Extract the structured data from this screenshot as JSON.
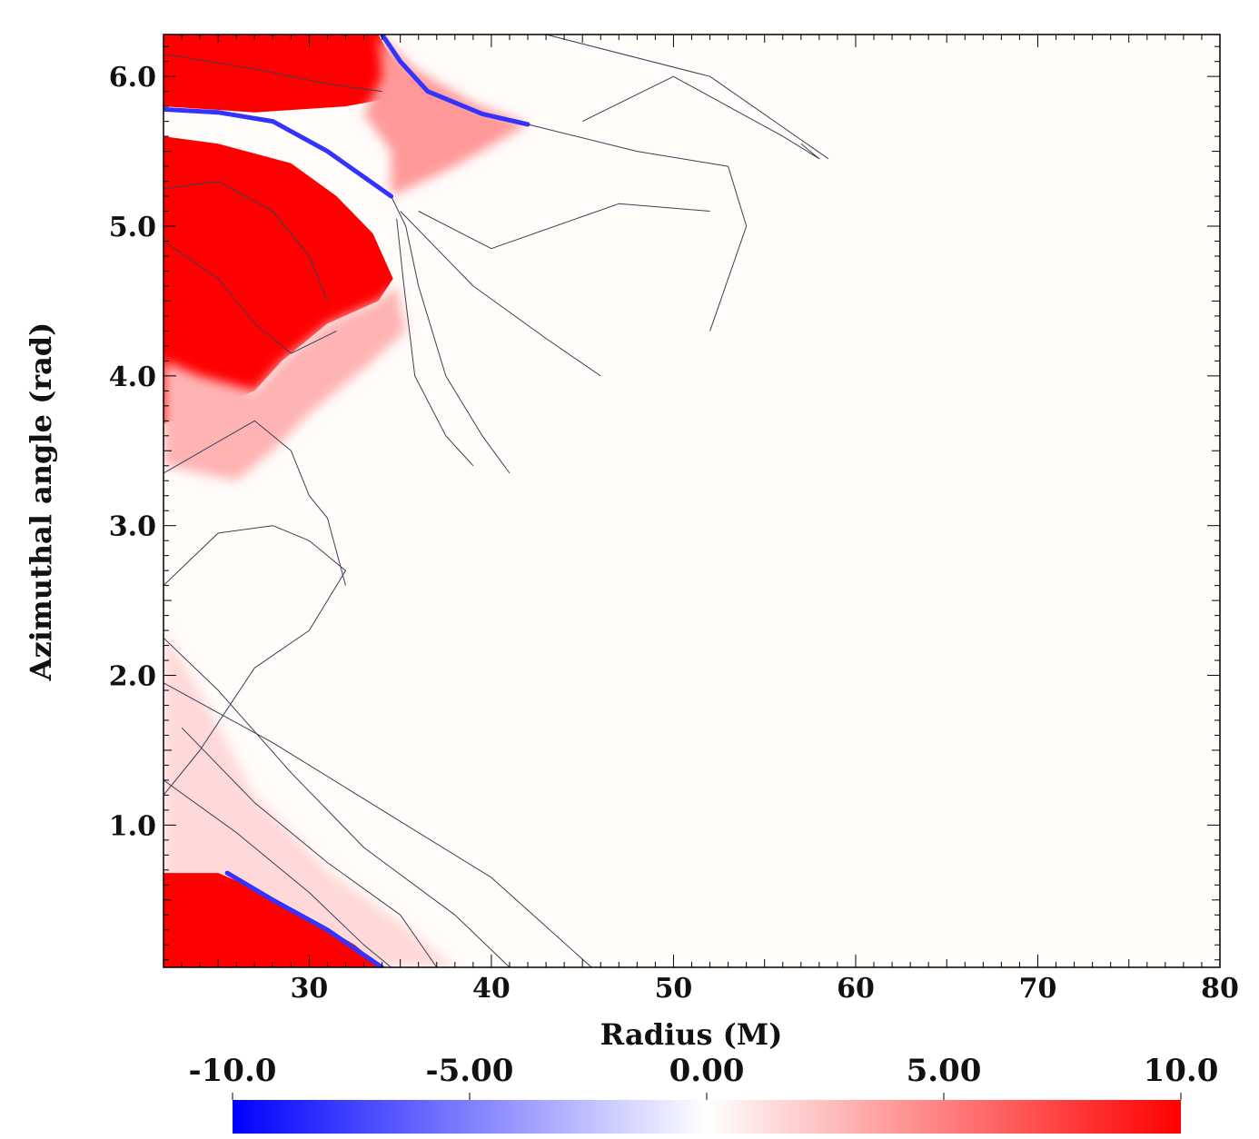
{
  "chart_data": {
    "type": "heatmap",
    "title": "",
    "xlabel": "Radius (M)",
    "ylabel": "Azimuthal angle (rad)",
    "xlim": [
      22,
      80
    ],
    "ylim": [
      0.05,
      6.28
    ],
    "x_ticks": [
      30,
      40,
      50,
      60,
      70,
      80
    ],
    "x_tick_labels": [
      "30",
      "40",
      "50",
      "60",
      "70",
      "80"
    ],
    "y_ticks": [
      1.0,
      2.0,
      3.0,
      4.0,
      5.0,
      6.0
    ],
    "y_tick_labels": [
      "1.0",
      "2.0",
      "3.0",
      "4.0",
      "5.0",
      "6.0"
    ],
    "colorbar": {
      "min": -10,
      "max": 10,
      "ticks": [
        -10,
        -5,
        0,
        5,
        10
      ],
      "tick_labels": [
        "-10.0",
        "-5.00",
        "0.00",
        "5.00",
        "10.0"
      ],
      "low_color": "#0000ff",
      "mid_color": "#ffffff",
      "high_color": "#ff0000",
      "placement": "bottom"
    },
    "regions": [
      {
        "name": "upper-red-lobe",
        "value": 10,
        "points": [
          [
            22,
            6.28
          ],
          [
            33.8,
            6.28
          ],
          [
            34.8,
            6.05
          ],
          [
            36.5,
            5.9
          ],
          [
            32,
            5.8
          ],
          [
            27,
            5.76
          ],
          [
            22,
            5.8
          ]
        ]
      },
      {
        "name": "upper-red-tail",
        "value": 4,
        "points": [
          [
            33.8,
            6.28
          ],
          [
            35.8,
            6.05
          ],
          [
            39,
            5.82
          ],
          [
            42,
            5.68
          ],
          [
            38,
            5.4
          ],
          [
            34.5,
            5.2
          ],
          [
            34.5,
            5.5
          ],
          [
            33,
            5.75
          ],
          [
            34,
            6.0
          ]
        ]
      },
      {
        "name": "middle-red-lobe",
        "value": 10,
        "points": [
          [
            22,
            5.6
          ],
          [
            25,
            5.55
          ],
          [
            29,
            5.42
          ],
          [
            31.5,
            5.2
          ],
          [
            33.5,
            4.95
          ],
          [
            34.6,
            4.65
          ],
          [
            33.8,
            4.5
          ],
          [
            31,
            4.35
          ],
          [
            28.5,
            4.1
          ],
          [
            27,
            3.9
          ],
          [
            24,
            3.75
          ],
          [
            22,
            3.68
          ]
        ]
      },
      {
        "name": "middle-pink-halo",
        "value": 3,
        "points": [
          [
            22,
            4.1
          ],
          [
            24,
            4.0
          ],
          [
            27,
            3.9
          ],
          [
            28.5,
            4.1
          ],
          [
            31,
            4.35
          ],
          [
            33.8,
            4.5
          ],
          [
            34.8,
            4.6
          ],
          [
            35.3,
            4.3
          ],
          [
            33,
            4.05
          ],
          [
            30,
            3.75
          ],
          [
            28,
            3.5
          ],
          [
            26,
            3.3
          ],
          [
            22,
            3.4
          ]
        ]
      },
      {
        "name": "lower-pink-band",
        "value": 1.5,
        "points": [
          [
            22,
            2.3
          ],
          [
            24,
            1.9
          ],
          [
            27,
            1.2
          ],
          [
            31,
            0.7
          ],
          [
            35,
            0.35
          ],
          [
            38,
            0.05
          ],
          [
            22,
            0.05
          ]
        ]
      },
      {
        "name": "lower-red-lobe",
        "value": 10,
        "points": [
          [
            22,
            0.68
          ],
          [
            25,
            0.68
          ],
          [
            27.5,
            0.55
          ],
          [
            30,
            0.38
          ],
          [
            32.5,
            0.2
          ],
          [
            34,
            0.05
          ],
          [
            22,
            0.05
          ]
        ]
      }
    ],
    "negative_bands": [
      {
        "name": "upper-edge-band",
        "value": -8,
        "points": [
          [
            34,
            6.28
          ],
          [
            35,
            6.1
          ],
          [
            36.5,
            5.9
          ],
          [
            39.5,
            5.75
          ],
          [
            42,
            5.68
          ]
        ]
      },
      {
        "name": "upper-cut-band",
        "value": -8,
        "points": [
          [
            22,
            5.78
          ],
          [
            25,
            5.76
          ],
          [
            28,
            5.7
          ],
          [
            31,
            5.5
          ],
          [
            34.5,
            5.2
          ]
        ]
      },
      {
        "name": "lower-edge-band",
        "value": -8,
        "points": [
          [
            25.5,
            0.68
          ],
          [
            28,
            0.5
          ],
          [
            31,
            0.3
          ],
          [
            34,
            0.05
          ]
        ]
      }
    ],
    "contours": [
      [
        [
          34.5,
          5.2
        ],
        [
          35.3,
          5.0
        ],
        [
          36,
          4.6
        ],
        [
          37.5,
          4.0
        ],
        [
          39.5,
          3.6
        ],
        [
          41,
          3.35
        ]
      ],
      [
        [
          34.8,
          5.05
        ],
        [
          35.2,
          4.6
        ],
        [
          35.8,
          4.0
        ],
        [
          37.5,
          3.6
        ],
        [
          39,
          3.4
        ]
      ],
      [
        [
          35,
          5.1
        ],
        [
          39,
          4.6
        ],
        [
          43,
          4.25
        ],
        [
          46,
          4.0
        ]
      ],
      [
        [
          36,
          5.1
        ],
        [
          40,
          4.85
        ],
        [
          47,
          5.15
        ],
        [
          52,
          5.1
        ]
      ],
      [
        [
          42,
          5.68
        ],
        [
          48,
          5.5
        ],
        [
          53,
          5.4
        ],
        [
          54,
          5.0
        ],
        [
          52,
          4.3
        ]
      ],
      [
        [
          45,
          5.7
        ],
        [
          50,
          6.0
        ],
        [
          56,
          5.6
        ],
        [
          58,
          5.45
        ],
        [
          57,
          5.55
        ]
      ],
      [
        [
          43,
          6.28
        ],
        [
          52,
          6.0
        ],
        [
          58.5,
          5.45
        ]
      ],
      [
        [
          22,
          3.35
        ],
        [
          27,
          3.7
        ],
        [
          29,
          3.5
        ],
        [
          30,
          3.2
        ],
        [
          31,
          3.05
        ],
        [
          32,
          2.6
        ]
      ],
      [
        [
          22,
          2.6
        ],
        [
          25,
          2.95
        ],
        [
          28,
          3.0
        ],
        [
          30,
          2.9
        ],
        [
          32,
          2.7
        ],
        [
          30,
          2.3
        ],
        [
          27,
          2.05
        ],
        [
          24,
          1.5
        ],
        [
          22,
          1.2
        ]
      ],
      [
        [
          22,
          2.25
        ],
        [
          25,
          1.9
        ],
        [
          29,
          1.35
        ],
        [
          33,
          0.85
        ],
        [
          38,
          0.4
        ],
        [
          41,
          0.05
        ]
      ],
      [
        [
          23,
          1.65
        ],
        [
          27,
          1.15
        ],
        [
          31,
          0.75
        ],
        [
          35,
          0.4
        ],
        [
          37,
          0.05
        ]
      ],
      [
        [
          22,
          1.95
        ],
        [
          28,
          1.55
        ],
        [
          34,
          1.1
        ],
        [
          40,
          0.65
        ],
        [
          45.5,
          0.05
        ]
      ],
      [
        [
          22,
          4.9
        ],
        [
          25,
          4.65
        ],
        [
          27,
          4.35
        ],
        [
          29,
          4.15
        ],
        [
          31.5,
          4.3
        ]
      ],
      [
        [
          22,
          5.25
        ],
        [
          25,
          5.3
        ],
        [
          28,
          5.1
        ],
        [
          30,
          4.8
        ],
        [
          31,
          4.5
        ]
      ],
      [
        [
          22,
          6.15
        ],
        [
          27,
          6.05
        ],
        [
          31,
          5.95
        ],
        [
          34,
          5.9
        ]
      ],
      [
        [
          22,
          1.3
        ],
        [
          26,
          0.95
        ],
        [
          30,
          0.55
        ],
        [
          33,
          0.2
        ],
        [
          34.5,
          0.05
        ]
      ]
    ]
  }
}
